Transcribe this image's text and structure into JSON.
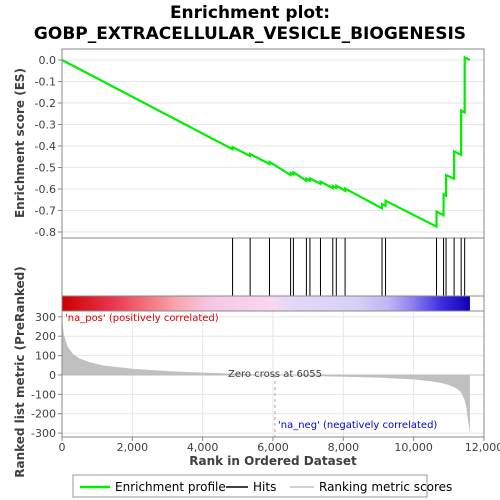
{
  "chart_data": {
    "type": "line",
    "title_line1": "Enrichment plot:",
    "title_line2": "GOBP_EXTRACELLULAR_VESICLE_BIOGENESIS",
    "es_ylabel": "Enrichment score (ES)",
    "metric_ylabel": "Ranked list metric (PreRanked)",
    "xlabel": "Rank in Ordered Dataset",
    "es_yticks": [
      0.0,
      -0.1,
      -0.2,
      -0.3,
      -0.4,
      -0.5,
      -0.6,
      -0.7,
      -0.8
    ],
    "es_ytick_labels": [
      "0.0",
      "-0.1",
      "-0.2",
      "-0.3",
      "-0.4",
      "-0.5",
      "-0.6",
      "-0.7",
      "-0.8"
    ],
    "es_ylim": [
      -0.8,
      0.0
    ],
    "metric_yticks": [
      300,
      200,
      100,
      0,
      -100,
      -200,
      -300
    ],
    "metric_ytick_labels": [
      "300",
      "200",
      "100",
      "0",
      "-100",
      "-200",
      "-300"
    ],
    "metric_ylim": [
      -320,
      330
    ],
    "xticks": [
      0,
      2000,
      4000,
      6000,
      8000,
      10000,
      12000
    ],
    "xtick_labels": [
      "0",
      "2,000",
      "4,000",
      "6,000",
      "8,000",
      "10,000",
      "12,000"
    ],
    "xlim": [
      0,
      12000
    ],
    "n_genes": 11600,
    "zero_cross_label": "Zero cross at 6055",
    "zero_cross_rank": 6055,
    "pos_label": "'na_pos' (positively correlated)",
    "neg_label": "'na_neg' (negatively correlated)",
    "hits": [
      4850,
      5350,
      5900,
      6500,
      6580,
      6950,
      7050,
      7350,
      7700,
      7800,
      8050,
      9100,
      9200,
      10650,
      10850,
      10920,
      11150,
      11350,
      11450
    ],
    "es_profile": {
      "x": [
        0,
        4850,
        4851,
        5350,
        5351,
        5900,
        5901,
        6500,
        6501,
        6580,
        6581,
        6950,
        6951,
        7050,
        7051,
        7350,
        7351,
        7700,
        7701,
        7800,
        7801,
        8050,
        8051,
        9100,
        9101,
        9200,
        9201,
        10650,
        10651,
        10850,
        10851,
        10920,
        10921,
        11150,
        11151,
        11350,
        11351,
        11450,
        11451,
        11600
      ],
      "y": [
        0.0,
        -0.415,
        -0.405,
        -0.447,
        -0.437,
        -0.484,
        -0.474,
        -0.535,
        -0.525,
        -0.532,
        -0.522,
        -0.562,
        -0.552,
        -0.561,
        -0.551,
        -0.576,
        -0.566,
        -0.596,
        -0.586,
        -0.595,
        -0.585,
        -0.608,
        -0.598,
        -0.69,
        -0.67,
        -0.678,
        -0.655,
        -0.775,
        -0.705,
        -0.722,
        -0.625,
        -0.631,
        -0.535,
        -0.552,
        -0.425,
        -0.441,
        -0.235,
        -0.244,
        0.012,
        0.0
      ]
    },
    "metric_profile": {
      "x": [
        0,
        50,
        150,
        300,
        500,
        800,
        1200,
        2000,
        3000,
        4000,
        5000,
        6055,
        7000,
        8000,
        9000,
        9500,
        10000,
        10500,
        10800,
        11000,
        11200,
        11350,
        11450,
        11500,
        11550,
        11600
      ],
      "y": [
        300,
        210,
        150,
        110,
        85,
        65,
        48,
        32,
        20,
        12,
        6,
        0,
        -5,
        -9,
        -14,
        -18,
        -23,
        -33,
        -42,
        -52,
        -68,
        -90,
        -130,
        -170,
        -240,
        -300
      ]
    },
    "heatmap_stops": [
      {
        "pos": 0.0,
        "color": "#cc0000"
      },
      {
        "pos": 0.12,
        "color": "#e8344a"
      },
      {
        "pos": 0.22,
        "color": "#f57b84"
      },
      {
        "pos": 0.28,
        "color": "#f8a5ad"
      },
      {
        "pos": 0.36,
        "color": "#f7c5e4"
      },
      {
        "pos": 0.52,
        "color": "#f8d8f0"
      },
      {
        "pos": 0.55,
        "color": "#e6d8f6"
      },
      {
        "pos": 0.72,
        "color": "#d7d0f5"
      },
      {
        "pos": 0.8,
        "color": "#bfb6f2"
      },
      {
        "pos": 0.86,
        "color": "#8a80ee"
      },
      {
        "pos": 0.93,
        "color": "#3e2ee0"
      },
      {
        "pos": 1.0,
        "color": "#0d00b8"
      }
    ],
    "legend": [
      "Enrichment profile",
      "Hits",
      "Ranking metric scores"
    ],
    "colors": {
      "es_line": "#00ee00",
      "hit": "#000000",
      "metric_fill": "#c0c0c0",
      "pos_label": "#dd0000",
      "neg_label": "#0000dd",
      "zero_line": "#bbbbbb",
      "grid": "#e6e6e6"
    }
  }
}
